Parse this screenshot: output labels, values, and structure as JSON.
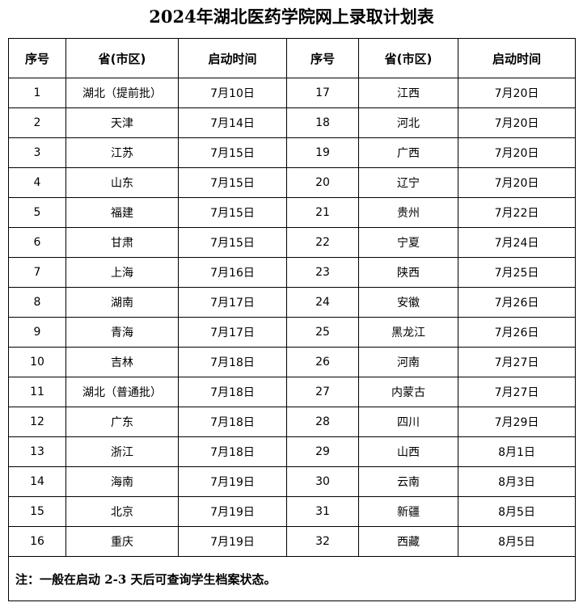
{
  "title": "2024年湖北医药学院网上录取计划表",
  "headers": [
    "序号",
    "省(市区)",
    "启动时间",
    "序号",
    "省(市区)",
    "启动时间"
  ],
  "rows": [
    [
      "1",
      "湖北（提前批）",
      "7月10日",
      "17",
      "江西",
      "7月20日"
    ],
    [
      "2",
      "天津",
      "7月14日",
      "18",
      "河北",
      "7月20日"
    ],
    [
      "3",
      "江苏",
      "7月15日",
      "19",
      "广西",
      "7月20日"
    ],
    [
      "4",
      "山东",
      "7月15日",
      "20",
      "辽宁",
      "7月20日"
    ],
    [
      "5",
      "福建",
      "7月15日",
      "21",
      "贵州",
      "7月22日"
    ],
    [
      "6",
      "甘肃",
      "7月15日",
      "22",
      "宁夏",
      "7月24日"
    ],
    [
      "7",
      "上海",
      "7月16日",
      "23",
      "陕西",
      "7月25日"
    ],
    [
      "8",
      "湖南",
      "7月17日",
      "24",
      "安徽",
      "7月26日"
    ],
    [
      "9",
      "青海",
      "7月17日",
      "25",
      "黑龙江",
      "7月26日"
    ],
    [
      "10",
      "吉林",
      "7月18日",
      "26",
      "河南",
      "7月27日"
    ],
    [
      "11",
      "湖北（普通批）",
      "7月18日",
      "27",
      "内蒙古",
      "7月27日"
    ],
    [
      "12",
      "广东",
      "7月18日",
      "28",
      "四川",
      "7月29日"
    ],
    [
      "13",
      "浙江",
      "7月18日",
      "29",
      "山西",
      "8月1日"
    ],
    [
      "14",
      "海南",
      "7月19日",
      "30",
      "云南",
      "8月3日"
    ],
    [
      "15",
      "北京",
      "7月19日",
      "31",
      "新疆",
      "8月5日"
    ],
    [
      "16",
      "重庆",
      "7月19日",
      "32",
      "西藏",
      "8月5日"
    ]
  ],
  "note": "注：一般在启动 2-3 天后可查询学生档案状态。"
}
